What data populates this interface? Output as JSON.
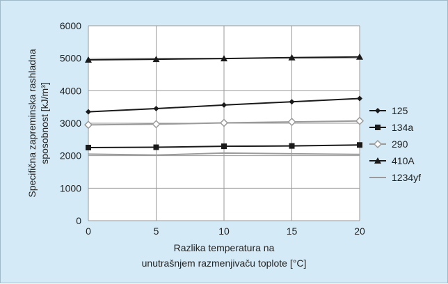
{
  "chart_data": {
    "type": "line",
    "x": [
      0,
      5,
      10,
      15,
      20
    ],
    "xlim": [
      0,
      20
    ],
    "ylim": [
      0,
      6000
    ],
    "x_ticks": [
      "0",
      "5",
      "10",
      "15",
      "20"
    ],
    "y_ticks": [
      "0",
      "1000",
      "2000",
      "3000",
      "4000",
      "5000",
      "6000"
    ],
    "xlabel": [
      "Razlika temperatura na",
      "unutrašnjem razmenjivaču toplote [°C]"
    ],
    "ylabel": [
      "Specifična zapreminska rashladna",
      "sposobnost [kJ/m³]"
    ],
    "grid": true,
    "legend_position": "right",
    "series": [
      {
        "name": "125",
        "marker": "diamond",
        "color": "#1a1a1a",
        "values": [
          3350,
          3450,
          3560,
          3660,
          3760
        ]
      },
      {
        "name": "134a",
        "marker": "square",
        "color": "#1a1a1a",
        "values": [
          2250,
          2260,
          2290,
          2300,
          2330
        ]
      },
      {
        "name": "290",
        "marker": "diamond-hollow",
        "color": "#9a9a9a",
        "values": [
          2950,
          2970,
          3010,
          3040,
          3070
        ]
      },
      {
        "name": "410A",
        "marker": "triangle",
        "color": "#1a1a1a",
        "values": [
          4950,
          4970,
          4990,
          5020,
          5040
        ]
      },
      {
        "name": "1234yf",
        "marker": "line",
        "color": "#9a9a9a",
        "values": [
          2050,
          2020,
          2080,
          2060,
          2040
        ]
      }
    ]
  }
}
